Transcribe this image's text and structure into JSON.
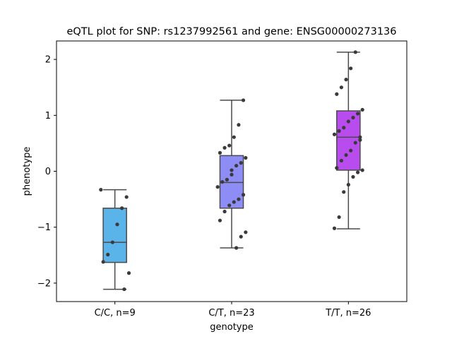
{
  "chart_data": {
    "type": "box",
    "title": "eQTL plot for SNP: rs1237992561 and gene: ENSG00000273136",
    "xlabel": "genotype",
    "ylabel": "phenotype",
    "ylim": [
      -2.33,
      2.33
    ],
    "yticks": [
      -2,
      -1,
      0,
      1,
      2
    ],
    "ytick_labels": [
      "−2",
      "−1",
      "0",
      "1",
      "2"
    ],
    "categories": [
      "C/C, n=9",
      "C/T, n=23",
      "T/T, n=26"
    ],
    "colors": [
      "#5ab4ea",
      "#8e8cf5",
      "#b94cef"
    ],
    "boxes": [
      {
        "q1": -1.63,
        "median": -1.27,
        "q3": -0.66,
        "whisker_low": -2.11,
        "whisker_high": -0.33
      },
      {
        "q1": -0.66,
        "median": -0.2,
        "q3": 0.28,
        "whisker_low": -1.37,
        "whisker_high": 1.27
      },
      {
        "q1": 0.02,
        "median": 0.61,
        "q3": 1.08,
        "whisker_low": -1.03,
        "whisker_high": 2.13
      }
    ],
    "points": [
      [
        -0.33,
        -0.46,
        -0.66,
        -0.95,
        -1.27,
        -1.49,
        -1.62,
        -1.82,
        -2.11
      ],
      [
        1.27,
        0.83,
        0.61,
        0.46,
        0.42,
        0.33,
        0.24,
        0.15,
        0.1,
        -0.06,
        -0.15,
        -0.19,
        -0.28,
        -0.42,
        -0.5,
        -0.55,
        -0.61,
        -0.72,
        -0.88,
        -1.09,
        -1.17,
        -1.37,
        0.02
      ],
      [
        2.13,
        1.84,
        1.64,
        1.5,
        1.38,
        1.1,
        1.03,
        0.96,
        0.89,
        0.78,
        0.72,
        0.66,
        0.56,
        0.51,
        0.37,
        0.29,
        0.19,
        0.06,
        0.02,
        -0.02,
        -0.1,
        -0.24,
        -0.37,
        -0.82,
        -1.02,
        0.61
      ]
    ]
  }
}
